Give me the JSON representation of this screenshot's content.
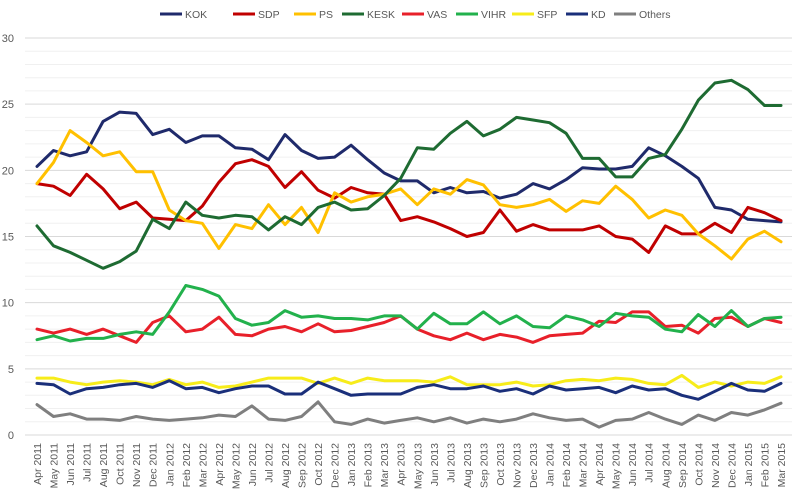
{
  "chart_data": {
    "type": "line",
    "title": "",
    "xlabel": "",
    "ylabel": "",
    "ylim": [
      0,
      30
    ],
    "yticks": [
      0,
      5,
      10,
      15,
      20,
      25,
      30
    ],
    "grid": true,
    "legend_position": "top",
    "categories": [
      "Apr 2011",
      "May 2011",
      "Jun 2011",
      "Jul 2011",
      "Aug 2011",
      "Oct 2011",
      "Nov 2011",
      "Dec 2011",
      "Jan 2012",
      "Feb 2012",
      "Mar 2012",
      "Apr 2012",
      "May 2012",
      "Jun 2012",
      "Jul 2012",
      "Aug 2012",
      "Sep 2012",
      "Oct 2012",
      "Dec 2012",
      "Jan 2013",
      "Feb 2013",
      "Mar 2013",
      "Apr 2013",
      "May 2013",
      "Jun 2013",
      "Jul 2013",
      "Aug 2013",
      "Sep 2013",
      "Oct 2013",
      "Nov 2013",
      "Dec 2013",
      "Jan 2014",
      "Feb 2014",
      "Mar 2014",
      "Apr 2014",
      "May 2014",
      "Jun 2014",
      "Jul 2014",
      "Aug 2014",
      "Sep 2014",
      "Oct 2014",
      "Nov 2014",
      "Dec 2014",
      "Jan 2015",
      "Feb 2015",
      "Mar 2015"
    ],
    "series": [
      {
        "name": "KOK",
        "color": "#1f2a6b",
        "values": [
          20.3,
          21.5,
          21.1,
          21.4,
          23.7,
          24.4,
          24.3,
          22.7,
          23.1,
          22.1,
          22.6,
          22.6,
          21.7,
          21.6,
          20.8,
          22.7,
          21.5,
          20.9,
          21.0,
          21.9,
          20.8,
          19.8,
          19.2,
          19.2,
          18.3,
          18.7,
          18.3,
          18.4,
          17.9,
          18.2,
          19.0,
          18.6,
          19.3,
          20.2,
          20.1,
          20.1,
          20.3,
          21.7,
          21.1,
          20.3,
          19.4,
          17.2,
          17.0,
          16.3,
          16.2,
          16.1
        ]
      },
      {
        "name": "SDP",
        "color": "#c00000",
        "values": [
          19.0,
          18.8,
          18.1,
          19.7,
          18.6,
          17.1,
          17.6,
          16.4,
          16.3,
          16.2,
          17.3,
          19.1,
          20.5,
          20.8,
          20.3,
          18.7,
          19.9,
          18.5,
          17.9,
          18.7,
          18.3,
          18.2,
          16.2,
          16.5,
          16.1,
          15.6,
          15.0,
          15.3,
          17.0,
          15.4,
          15.9,
          15.5,
          15.5,
          15.5,
          15.8,
          15.0,
          14.8,
          13.8,
          15.8,
          15.2,
          15.2,
          16.0,
          15.3,
          17.2,
          16.8,
          16.2
        ]
      },
      {
        "name": "PS",
        "color": "#ffc000",
        "values": [
          19.0,
          20.6,
          23.0,
          22.1,
          21.1,
          21.4,
          19.9,
          19.9,
          17.0,
          16.2,
          16.0,
          14.1,
          15.9,
          15.6,
          17.4,
          15.9,
          17.2,
          15.3,
          18.3,
          17.6,
          18.0,
          18.2,
          18.6,
          17.4,
          18.6,
          18.2,
          19.3,
          18.9,
          17.4,
          17.2,
          17.4,
          17.8,
          16.9,
          17.7,
          17.5,
          18.8,
          17.8,
          16.4,
          17.0,
          16.6,
          15.2,
          14.3,
          13.3,
          14.8,
          15.4,
          14.6
        ]
      },
      {
        "name": "KESK",
        "color": "#1e6b32",
        "values": [
          15.8,
          14.3,
          13.8,
          13.2,
          12.6,
          13.1,
          13.9,
          16.3,
          15.6,
          17.6,
          16.6,
          16.4,
          16.6,
          16.5,
          15.5,
          16.5,
          15.9,
          17.2,
          17.6,
          17.0,
          17.1,
          18.1,
          19.4,
          21.7,
          21.6,
          22.8,
          23.7,
          22.6,
          23.1,
          24.0,
          23.8,
          23.6,
          22.8,
          20.9,
          20.9,
          19.5,
          19.5,
          20.9,
          21.2,
          23.1,
          25.3,
          26.6,
          26.8,
          26.1,
          24.9,
          24.9
        ]
      },
      {
        "name": "VAS",
        "color": "#e8202a",
        "values": [
          8.0,
          7.7,
          8.0,
          7.6,
          8.0,
          7.5,
          7.0,
          8.5,
          9.0,
          7.8,
          8.0,
          8.9,
          7.6,
          7.5,
          8.0,
          8.2,
          7.8,
          8.4,
          7.8,
          7.9,
          8.2,
          8.5,
          9.0,
          8.0,
          7.5,
          7.2,
          7.7,
          7.2,
          7.6,
          7.4,
          7.0,
          7.5,
          7.6,
          7.7,
          8.6,
          8.5,
          9.3,
          9.3,
          8.2,
          8.3,
          7.7,
          8.8,
          8.9,
          8.2,
          8.8,
          8.5
        ]
      },
      {
        "name": "VIHR",
        "color": "#22b14c",
        "values": [
          7.2,
          7.5,
          7.1,
          7.3,
          7.3,
          7.6,
          7.8,
          7.6,
          9.3,
          11.3,
          11.0,
          10.5,
          8.8,
          8.3,
          8.5,
          9.4,
          8.9,
          9.0,
          8.8,
          8.8,
          8.7,
          9.0,
          9.0,
          8.0,
          9.2,
          8.4,
          8.4,
          9.3,
          8.4,
          9.0,
          8.2,
          8.1,
          9.0,
          8.7,
          8.2,
          9.2,
          9.0,
          8.9,
          8.0,
          7.8,
          9.1,
          8.2,
          9.4,
          8.2,
          8.8,
          8.9
        ]
      },
      {
        "name": "SFP",
        "color": "#f7ec1a",
        "values": [
          4.3,
          4.3,
          4.0,
          3.8,
          4.0,
          4.1,
          4.0,
          3.8,
          4.2,
          3.8,
          4.0,
          3.6,
          3.7,
          4.0,
          4.3,
          4.3,
          4.3,
          3.9,
          4.3,
          3.9,
          4.3,
          4.1,
          4.1,
          4.1,
          4.0,
          4.4,
          3.8,
          3.8,
          3.8,
          4.0,
          3.7,
          3.8,
          4.1,
          4.2,
          4.1,
          4.3,
          4.2,
          3.9,
          3.8,
          4.5,
          3.6,
          4.0,
          3.7,
          4.0,
          3.9,
          4.4
        ]
      },
      {
        "name": "KD",
        "color": "#1a2f7a",
        "values": [
          3.9,
          3.8,
          3.1,
          3.5,
          3.6,
          3.8,
          3.9,
          3.6,
          4.1,
          3.5,
          3.6,
          3.2,
          3.5,
          3.7,
          3.7,
          3.1,
          3.1,
          4.0,
          3.5,
          3.0,
          3.1,
          3.1,
          3.1,
          3.6,
          3.8,
          3.5,
          3.5,
          3.7,
          3.3,
          3.5,
          3.1,
          3.7,
          3.4,
          3.5,
          3.6,
          3.2,
          3.7,
          3.4,
          3.5,
          3.0,
          2.7,
          3.3,
          3.9,
          3.4,
          3.3,
          3.9
        ]
      },
      {
        "name": "Others",
        "color": "#7f7f7f",
        "values": [
          2.3,
          1.4,
          1.6,
          1.2,
          1.2,
          1.1,
          1.4,
          1.2,
          1.1,
          1.2,
          1.3,
          1.5,
          1.4,
          2.2,
          1.2,
          1.1,
          1.4,
          2.5,
          1.0,
          0.8,
          1.2,
          0.9,
          1.1,
          1.3,
          1.0,
          1.3,
          0.9,
          1.2,
          1.0,
          1.2,
          1.6,
          1.3,
          1.1,
          1.2,
          0.6,
          1.1,
          1.2,
          1.7,
          1.2,
          0.8,
          1.5,
          1.1,
          1.7,
          1.5,
          1.9,
          2.4
        ]
      }
    ]
  }
}
